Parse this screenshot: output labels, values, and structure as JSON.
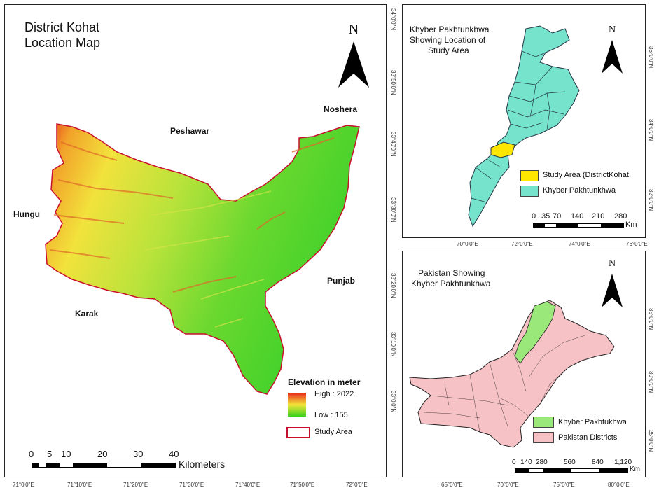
{
  "main": {
    "title_line1": "District Kohat",
    "title_line2": "Location Map",
    "north": "N",
    "labels": {
      "noshera": "Noshera",
      "peshawar": "Peshawar",
      "hungu": "Hungu",
      "punjab": "Punjab",
      "karak": "Karak"
    },
    "legend": {
      "title": "Elevation in meter",
      "high": "High : 2022",
      "low": "Low : 155",
      "study_area": "Study Area",
      "ramp_top": "#e8261c",
      "ramp_mid": "#f4e53a",
      "ramp_bottom": "#36d21c",
      "boundary": "#c8102e"
    },
    "scale": {
      "ticks": [
        "0",
        "5",
        "10",
        "20",
        "30",
        "40"
      ],
      "unit": "Kilometers"
    },
    "x_coords": [
      "71°0'0\"E",
      "71°10'0\"E",
      "71°20'0\"E",
      "71°30'0\"E",
      "71°40'0\"E",
      "71°50'0\"E",
      "72°0'0\"E"
    ],
    "y_coords": [
      "34°0'0\"N",
      "33°50'0\"N",
      "33°40'0\"N",
      "33°30'0\"N",
      "33°20'0\"N",
      "33°10'0\"N",
      "33°0'0\"N"
    ]
  },
  "kp": {
    "title_line1": "Khyber Pakhtunkhwa",
    "title_line2": "Showing Location of",
    "title_line3": "Study Area",
    "north": "N",
    "legend": {
      "study_area": "Study Area (DistrictKohat",
      "kp": "Khyber Pakhtunkhwa",
      "study_color": "#ffe600",
      "kp_color": "#76e3cc"
    },
    "scale": {
      "ticks": [
        "0",
        "35",
        "70",
        "140",
        "210",
        "280"
      ],
      "unit": "Km"
    },
    "x_coords": [
      "70°0'0\"E",
      "72°0'0\"E",
      "74°0'0\"E",
      "76°0'0\"E"
    ],
    "y_coords": [
      "36°0'0\"N",
      "34°0'0\"N",
      "32°0'0\"N"
    ]
  },
  "pk": {
    "title_line1": "Pakistan Showing",
    "title_line2": "Khyber Pakhtunkhwa",
    "north": "N",
    "legend": {
      "kp": "Khyber Pakhtukhwa",
      "districts": "Pakistan Districts",
      "kp_color": "#9be87a",
      "district_color": "#f6c2c6"
    },
    "scale": {
      "ticks": [
        "0",
        "140",
        "280",
        "560",
        "840",
        "1,120"
      ],
      "unit": "Km"
    },
    "x_coords": [
      "65°0'0\"E",
      "70°0'0\"E",
      "75°0'0\"E",
      "80°0'0\"E"
    ],
    "y_coords": [
      "35°0'0\"N",
      "30°0'0\"N",
      "25°0'0\"N"
    ]
  }
}
